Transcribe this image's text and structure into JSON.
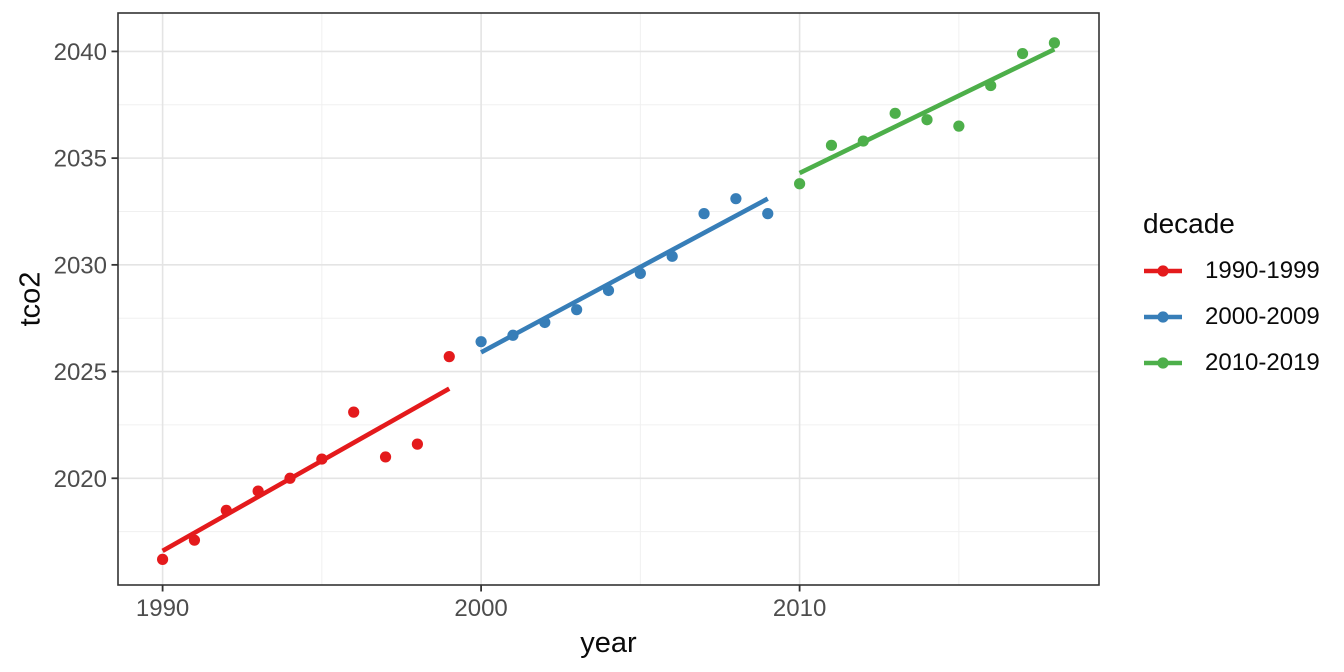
{
  "axes": {
    "x_title": "year",
    "y_title": "tco2"
  },
  "legend": {
    "title": "decade",
    "items": [
      {
        "label": "1990-1999",
        "color": "#E41A1C"
      },
      {
        "label": "2000-2009",
        "color": "#377EB8"
      },
      {
        "label": "2010-2019",
        "color": "#4DAF4A"
      }
    ]
  },
  "chart_data": {
    "type": "scatter",
    "title": "",
    "xlabel": "year",
    "ylabel": "tco2",
    "legend_title": "decade",
    "legend_position": "right",
    "grid": "major+minor",
    "xlim": [
      1988.6,
      2019.4
    ],
    "ylim": [
      2015.0,
      2041.8
    ],
    "x_major_ticks": [
      1990,
      2000,
      2010
    ],
    "x_minor_gridlines": [
      1995,
      2005,
      2015
    ],
    "y_major_ticks": [
      2020,
      2025,
      2030,
      2035,
      2040
    ],
    "y_minor_gridlines": [
      2017.5,
      2022.5,
      2027.5,
      2032.5,
      2037.5
    ],
    "series": [
      {
        "name": "1990-1999",
        "color": "#E41A1C",
        "x": [
          1990,
          1991,
          1992,
          1993,
          1994,
          1995,
          1996,
          1997,
          1998,
          1999
        ],
        "y": [
          2016.2,
          2017.1,
          2018.5,
          2019.4,
          2020.0,
          2020.9,
          2023.1,
          2021.0,
          2021.6,
          2025.7
        ],
        "trend": {
          "x": [
            1990,
            1999
          ],
          "y": [
            2016.6,
            2024.2
          ]
        }
      },
      {
        "name": "2000-2009",
        "color": "#377EB8",
        "x": [
          2000,
          2001,
          2002,
          2003,
          2004,
          2005,
          2006,
          2007,
          2008,
          2009
        ],
        "y": [
          2026.4,
          2026.7,
          2027.3,
          2027.9,
          2028.8,
          2029.6,
          2030.4,
          2032.4,
          2033.1,
          2032.4
        ],
        "trend": {
          "x": [
            2000,
            2009
          ],
          "y": [
            2025.9,
            2033.1
          ]
        }
      },
      {
        "name": "2010-2019",
        "color": "#4DAF4A",
        "x": [
          2010,
          2011,
          2012,
          2013,
          2014,
          2015,
          2016,
          2017,
          2018
        ],
        "y": [
          2033.8,
          2035.6,
          2035.8,
          2037.1,
          2036.8,
          2036.5,
          2038.4,
          2039.9,
          2040.4
        ],
        "trend": {
          "x": [
            2010,
            2018
          ],
          "y": [
            2034.3,
            2040.1
          ]
        }
      }
    ],
    "theme": {
      "panel_background": "#ffffff",
      "grid_major": "#E4E4E4",
      "grid_minor": "#F0F0F0",
      "panel_border": "#333333",
      "tick_color": "#333333",
      "tick_label_color": "#4D4D4D",
      "title_color": "#0a0a0a"
    }
  }
}
